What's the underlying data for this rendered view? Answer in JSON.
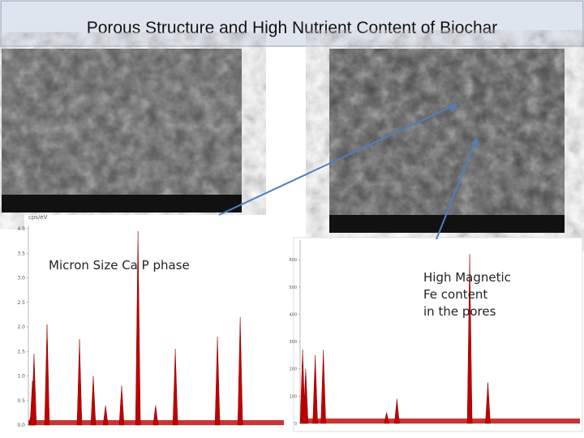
{
  "header": {
    "title": "Porous Structure and High Nutrient Content of Biochar"
  },
  "annotations": {
    "left": "Micron Size Ca P phase",
    "right": [
      "High Magnetic",
      "Fe content",
      "in the pores"
    ]
  },
  "chart_data": [
    {
      "type": "spectrum",
      "y_label": "cps/eV",
      "color": "#c00000",
      "x": [
        0.1,
        0.16,
        0.22,
        0.73,
        2.0,
        2.54,
        3.02,
        3.65,
        4.29,
        4.98,
        5.75,
        7.4,
        8.29
      ],
      "values": [
        0.2,
        0.9,
        1.45,
        2.05,
        1.75,
        1.0,
        0.4,
        0.8,
        3.95,
        0.4,
        1.55,
        1.8,
        2.2
      ],
      "xlim": [
        0,
        10
      ],
      "ylim": [
        0,
        4.0
      ],
      "yticks": [
        {
          "value": 0,
          "label": "0.0"
        },
        0.5,
        {
          "value": 1,
          "label": "1.0"
        },
        1.5,
        {
          "value": 2,
          "label": "2.0"
        },
        2.5,
        {
          "value": 3,
          "label": "3.0"
        },
        3.5,
        {
          "value": 4,
          "label": "4.0"
        }
      ]
    },
    {
      "type": "spectrum",
      "color": "#c00000",
      "x": [
        0.09,
        0.2,
        0.54,
        0.83,
        3.09,
        3.46,
        6.06,
        6.71
      ],
      "values": [
        270,
        200,
        250,
        270,
        40,
        90,
        620,
        150
      ],
      "xlim": [
        0,
        10
      ],
      "ylim": [
        0,
        660
      ],
      "yticks": [
        0,
        100,
        200,
        300,
        400,
        500,
        600
      ]
    }
  ]
}
